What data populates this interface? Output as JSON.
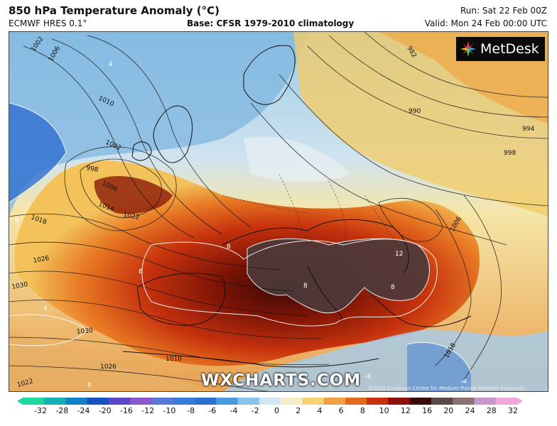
{
  "header": {
    "title": "850 hPa Temperature Anomaly (°C)",
    "model": "ECMWF HRES 0.1°",
    "base": "Base: CFSR 1979-2010 climatology",
    "run": "Run: Sat 22 Feb 00Z",
    "valid": "Valid: Mon 24 Feb 00:00 UTC"
  },
  "logo": {
    "text": "MetDesk",
    "icon": "metdesk-star-icon"
  },
  "watermark": "WXCHARTS.COM",
  "credit": "©2020 European Centre for Medium-Range Weather Forecasts (ECMWF)",
  "isobar_labels": [
    "1002",
    "1006",
    "1010",
    "1002",
    "998",
    "1006",
    "1014",
    "1018",
    "1022",
    "1026",
    "1030",
    "1030",
    "1026",
    "1022",
    "982",
    "990",
    "994",
    "998",
    "1006",
    "1018",
    "1010"
  ],
  "anomaly_labels": [
    "4",
    "8",
    "8",
    "8",
    "12",
    "8",
    "4",
    "4",
    "8",
    "-4",
    "-4"
  ],
  "colorbar": {
    "ticks": [
      "-32",
      "-28",
      "-24",
      "-20",
      "-16",
      "-12",
      "-10",
      "-8",
      "-6",
      "-4",
      "-2",
      "0",
      "2",
      "4",
      "6",
      "8",
      "10",
      "12",
      "16",
      "20",
      "24",
      "28",
      "32"
    ],
    "colors": [
      "#1fd8a0",
      "#12b0b0",
      "#1080c8",
      "#1a50c0",
      "#5a48c8",
      "#8a58c8",
      "#5878d8",
      "#3a7ad8",
      "#2f6fd0",
      "#4a9adf",
      "#8cc3ea",
      "#d2e6f4",
      "#f4edc8",
      "#f6d277",
      "#f0a040",
      "#e06a1e",
      "#c6300f",
      "#8c1006",
      "#3a0a0a",
      "#5a4a4a",
      "#8a7070",
      "#c896c8",
      "#f0a8d8"
    ]
  }
}
